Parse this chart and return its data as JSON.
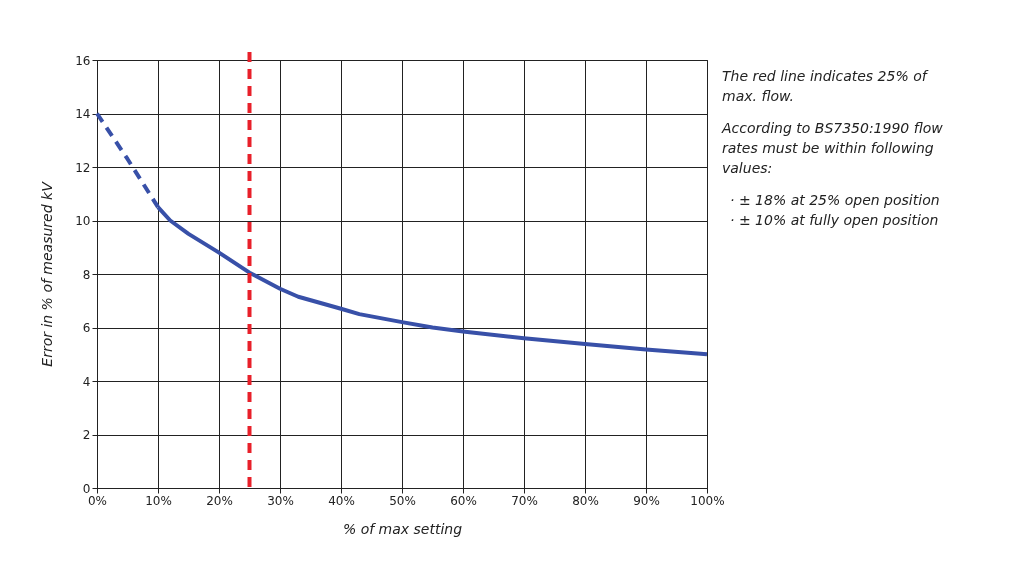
{
  "chart_data": {
    "type": "line",
    "xlabel": "% of max setting",
    "ylabel": "Error in % of measured kV",
    "xlim": [
      0,
      100
    ],
    "xticks": [
      {
        "value": 0,
        "label": "0%"
      },
      {
        "value": 10,
        "label": "10%"
      },
      {
        "value": 20,
        "label": "20%"
      },
      {
        "value": 30,
        "label": "30%"
      },
      {
        "value": 40,
        "label": "40%"
      },
      {
        "value": 50,
        "label": "50%"
      },
      {
        "value": 60,
        "label": "60%"
      },
      {
        "value": 70,
        "label": "70%"
      },
      {
        "value": 80,
        "label": "80%"
      },
      {
        "value": 90,
        "label": "90%"
      },
      {
        "value": 100,
        "label": "100%"
      }
    ],
    "ylim": [
      0,
      16
    ],
    "yticks": [
      0,
      2,
      4,
      6,
      8,
      10,
      12,
      14,
      16
    ],
    "grid": true,
    "marker": "none",
    "series": [
      {
        "color": "#3850a8",
        "line_style": "dashed",
        "x": [
          0,
          5,
          10
        ],
        "values": [
          14,
          12.3,
          10.5
        ]
      },
      {
        "color": "#3850a8",
        "line_style": "solid",
        "x": [
          10,
          12,
          15,
          20,
          25,
          30,
          33,
          40,
          43,
          50,
          55,
          60,
          70,
          80,
          90,
          100
        ],
        "values": [
          10.5,
          10,
          9.5,
          8.8,
          8.05,
          7.45,
          7.15,
          6.7,
          6.5,
          6.2,
          6.0,
          5.85,
          5.6,
          5.38,
          5.18,
          5.0
        ]
      }
    ],
    "ref_lines": [
      {
        "axis": "x",
        "value": 25,
        "color": "#e8202a",
        "line_style": "dashed"
      }
    ],
    "annotations": [
      "The red line indicates 25% of max. flow.",
      "According to BS7350:1990 flow rates must be within following values:",
      "· ± 18% at 25% open position",
      "· ± 10% at fully open position"
    ]
  }
}
